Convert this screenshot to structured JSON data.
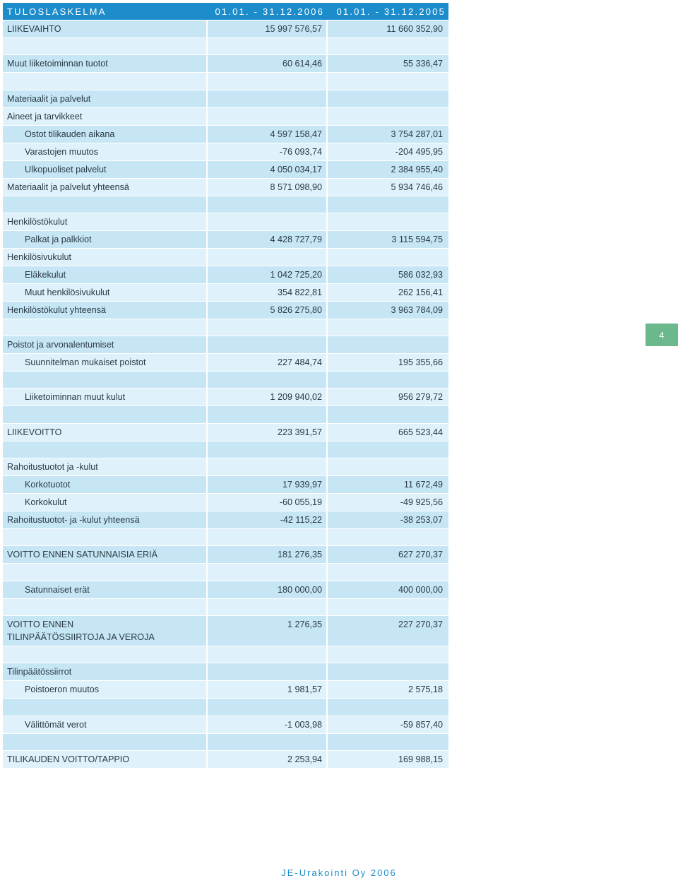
{
  "header": {
    "title": "TULOSLASKELMA",
    "period_current": "01.01. - 31.12.2006",
    "period_previous": "01.01. - 31.12.2005"
  },
  "rows": [
    {
      "label": "LIIKEVAIHTO",
      "v2006": "15 997 576,57",
      "v2005": "11 660 352,90",
      "indent": false
    },
    {
      "label": "",
      "v2006": "",
      "v2005": "",
      "indent": false
    },
    {
      "label": "Muut liiketoiminnan tuotot",
      "v2006": "60 614,46",
      "v2005": "55 336,47",
      "indent": false
    },
    {
      "label": "",
      "v2006": "",
      "v2005": "",
      "indent": false
    },
    {
      "label": "Materiaalit ja palvelut",
      "v2006": "",
      "v2005": "",
      "indent": false
    },
    {
      "label": "Aineet ja tarvikkeet",
      "v2006": "",
      "v2005": "",
      "indent": false
    },
    {
      "label": "Ostot tilikauden aikana",
      "v2006": "4 597 158,47",
      "v2005": "3 754 287,01",
      "indent": true
    },
    {
      "label": "Varastojen muutos",
      "v2006": "-76 093,74",
      "v2005": "-204 495,95",
      "indent": true
    },
    {
      "label": "Ulkopuoliset palvelut",
      "v2006": "4 050 034,17",
      "v2005": "2 384 955,40",
      "indent": true
    },
    {
      "label": "Materiaalit ja palvelut yhteensä",
      "v2006": "8 571 098,90",
      "v2005": "5 934 746,46",
      "indent": false
    },
    {
      "label": "",
      "v2006": "",
      "v2005": "",
      "indent": false
    },
    {
      "label": "Henkilöstökulut",
      "v2006": "",
      "v2005": "",
      "indent": false
    },
    {
      "label": "Palkat ja palkkiot",
      "v2006": "4 428 727,79",
      "v2005": "3 115 594,75",
      "indent": true
    },
    {
      "label": "Henkilösivukulut",
      "v2006": "",
      "v2005": "",
      "indent": false
    },
    {
      "label": "Eläkekulut",
      "v2006": "1 042 725,20",
      "v2005": "586 032,93",
      "indent": true
    },
    {
      "label": "Muut henkilösivukulut",
      "v2006": "354 822,81",
      "v2005": "262 156,41",
      "indent": true
    },
    {
      "label": "Henkilöstökulut yhteensä",
      "v2006": "5 826 275,80",
      "v2005": "3 963 784,09",
      "indent": false
    },
    {
      "label": "",
      "v2006": "",
      "v2005": "",
      "indent": false
    },
    {
      "label": "Poistot ja arvonalentumiset",
      "v2006": "",
      "v2005": "",
      "indent": false
    },
    {
      "label": "Suunnitelman mukaiset poistot",
      "v2006": "227 484,74",
      "v2005": "195 355,66",
      "indent": true
    },
    {
      "label": "",
      "v2006": "",
      "v2005": "",
      "indent": false
    },
    {
      "label": "Liiketoiminnan muut kulut",
      "v2006": "1 209 940,02",
      "v2005": "956 279,72",
      "indent": true
    },
    {
      "label": "",
      "v2006": "",
      "v2005": "",
      "indent": false
    },
    {
      "label": "LIIKEVOITTO",
      "v2006": "223 391,57",
      "v2005": "665 523,44",
      "indent": false
    },
    {
      "label": "",
      "v2006": "",
      "v2005": "",
      "indent": false
    },
    {
      "label": "Rahoitustuotot ja -kulut",
      "v2006": "",
      "v2005": "",
      "indent": false
    },
    {
      "label": "Korkotuotot",
      "v2006": "17 939,97",
      "v2005": "11 672,49",
      "indent": true
    },
    {
      "label": "Korkokulut",
      "v2006": "-60 055,19",
      "v2005": "-49 925,56",
      "indent": true
    },
    {
      "label": "Rahoitustuotot- ja -kulut yhteensä",
      "v2006": "-42 115,22",
      "v2005": "-38 253,07",
      "indent": false
    },
    {
      "label": "",
      "v2006": "",
      "v2005": "",
      "indent": false
    },
    {
      "label": "VOITTO ENNEN SATUNNAISIA ERIÄ",
      "v2006": "181 276,35",
      "v2005": "627 270,37",
      "indent": false
    },
    {
      "label": "",
      "v2006": "",
      "v2005": "",
      "indent": false
    },
    {
      "label": "Satunnaiset erät",
      "v2006": "180 000,00",
      "v2005": "400 000,00",
      "indent": true
    },
    {
      "label": "",
      "v2006": "",
      "v2005": "",
      "indent": false
    },
    {
      "label": "VOITTO ENNEN\nTILINPÄÄTÖSSIIRTOJA JA VEROJA",
      "v2006": "1 276,35",
      "v2005": "227 270,37",
      "indent": false
    },
    {
      "label": "",
      "v2006": "",
      "v2005": "",
      "indent": false
    },
    {
      "label": "Tilinpäätössiirrot",
      "v2006": "",
      "v2005": "",
      "indent": false
    },
    {
      "label": "Poistoeron muutos",
      "v2006": "1 981,57",
      "v2005": "2 575,18",
      "indent": true
    },
    {
      "label": "",
      "v2006": "",
      "v2005": "",
      "indent": false
    },
    {
      "label": "Välittömät verot",
      "v2006": "-1 003,98",
      "v2005": "-59 857,40",
      "indent": true
    },
    {
      "label": "",
      "v2006": "",
      "v2005": "",
      "indent": false
    },
    {
      "label": "TILIKAUDEN VOITTO/TAPPIO",
      "v2006": "2 253,94",
      "v2005": "169 988,15",
      "indent": false
    }
  ],
  "page_number": "4",
  "footer": "JE-Urakointi Oy 2006",
  "colors": {
    "header_bg": "#1d8ccb",
    "row_dark": "#c6e6f5",
    "row_light": "#dff1fa",
    "page_tab": "#6bb88d"
  }
}
